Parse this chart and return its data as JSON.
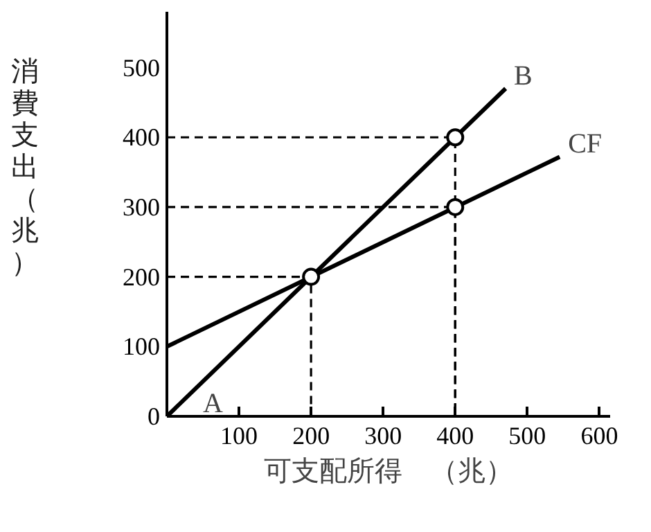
{
  "chart_data": {
    "type": "line",
    "xlabel": "可支配所得　（兆）",
    "ylabel": "消費支出（兆）",
    "xlim": [
      0,
      615
    ],
    "ylim": [
      0,
      580
    ],
    "xticks": [
      100,
      200,
      300,
      400,
      500,
      600
    ],
    "yticks": [
      0,
      100,
      200,
      300,
      400,
      500
    ],
    "grid": false,
    "line_style": "solid",
    "marker": "none",
    "series": [
      {
        "color": "#000000",
        "x": [
          0,
          470
        ],
        "values": [
          0,
          470
        ]
      },
      {
        "color": "#000000",
        "x": [
          0,
          545
        ],
        "values": [
          100,
          372
        ]
      },
      {
        "color": "#000000",
        "x": [
          0,
          400,
          400
        ],
        "values": [
          400,
          400,
          0
        ],
        "line_style": "dashed"
      },
      {
        "color": "#000000",
        "x": [
          0,
          400,
          400
        ],
        "values": [
          300,
          300,
          0
        ],
        "line_style": "dashed"
      },
      {
        "color": "#000000",
        "x": [
          0,
          200,
          200
        ],
        "values": [
          200,
          200,
          0
        ],
        "line_style": "dashed"
      },
      {
        "type": "scatter",
        "color": "#000000",
        "x": [
          200,
          400,
          400
        ],
        "values": [
          200,
          300,
          400
        ],
        "marker": "circle"
      }
    ],
    "annotations": [
      {
        "text": "A",
        "x": 0,
        "y": 0
      },
      {
        "text": "B",
        "x": 470,
        "y": 470
      },
      {
        "text": "CF",
        "x": 545,
        "y": 372
      }
    ]
  }
}
